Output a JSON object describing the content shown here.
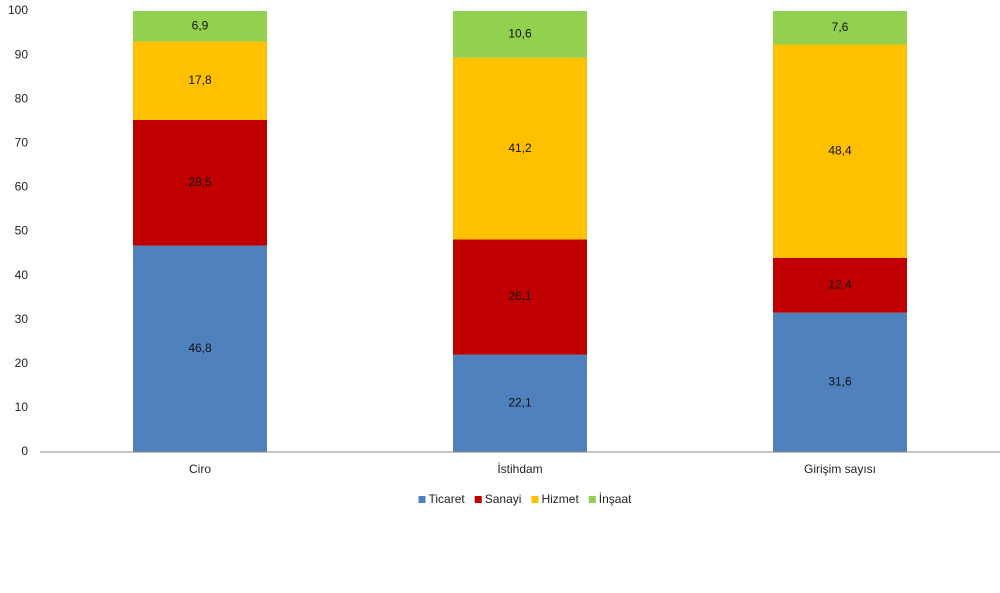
{
  "chart_data": {
    "type": "stacked_bar",
    "categories": [
      "Ciro",
      "İstihdam",
      "Girişim sayısı"
    ],
    "series": [
      {
        "name": "Ticaret",
        "color": "#4f81bd",
        "values": [
          46.8,
          22.1,
          31.6
        ],
        "value_labels": [
          "46,8",
          "22,1",
          "31,6"
        ]
      },
      {
        "name": "Sanayi",
        "color": "#c00000",
        "values": [
          28.5,
          26.1,
          12.4
        ],
        "value_labels": [
          "28,5",
          "26,1",
          "12,4"
        ]
      },
      {
        "name": "Hizmet",
        "color": "#ffc000",
        "values": [
          17.8,
          41.2,
          48.4
        ],
        "value_labels": [
          "17,8",
          "41,2",
          "48,4"
        ]
      },
      {
        "name": "İnşaat",
        "color": "#92d050",
        "values": [
          6.9,
          10.6,
          7.6
        ],
        "value_labels": [
          "6,9",
          "10,6",
          "7,6"
        ]
      }
    ],
    "ylim": [
      0,
      100
    ],
    "yticks": [
      0,
      10,
      20,
      30,
      40,
      50,
      60,
      70,
      80,
      90,
      100
    ],
    "legend": "bottom"
  }
}
